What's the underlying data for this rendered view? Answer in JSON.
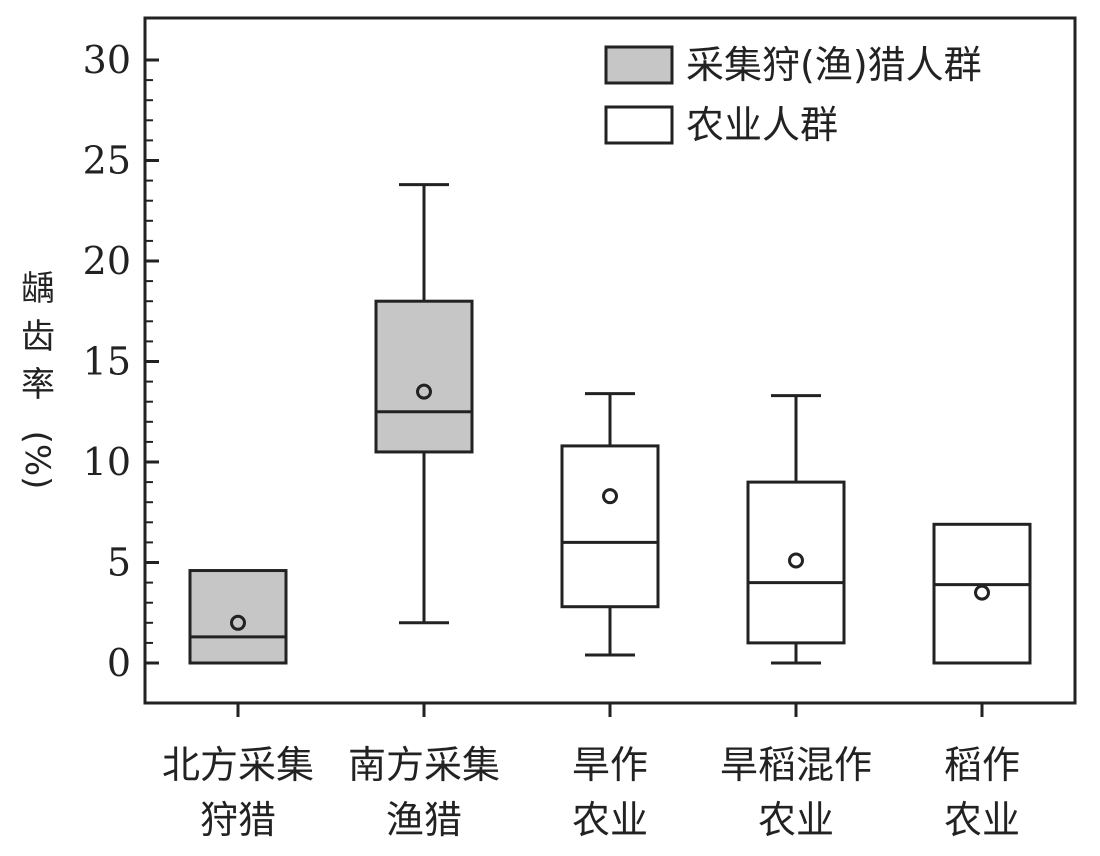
{
  "chart_data": {
    "type": "box",
    "ylabel_lines": [
      "龋",
      "齿",
      "率",
      "(%)"
    ],
    "ylim": [
      0,
      30
    ],
    "yticks": [
      "0",
      "5",
      "10",
      "15",
      "20",
      "25",
      "30"
    ],
    "grid": false,
    "legend_position": "top-right",
    "legend": [
      {
        "key": "hunter",
        "label": "采集狩(渔)猎人群",
        "color": "#c6c6c6"
      },
      {
        "key": "farmer",
        "label": "农业人群",
        "color": "#ffffff"
      }
    ],
    "categories": [
      {
        "label_lines": [
          "北方采集",
          "狩猎"
        ],
        "group": "hunter",
        "min": 0,
        "q1": 0,
        "median": 1.3,
        "q3": 4.6,
        "max": 4.6,
        "mean": 2.0
      },
      {
        "label_lines": [
          "南方采集",
          "渔猎"
        ],
        "group": "hunter",
        "min": 2.0,
        "q1": 10.5,
        "median": 12.5,
        "q3": 18.0,
        "max": 23.8,
        "mean": 13.5
      },
      {
        "label_lines": [
          "旱作",
          "农业"
        ],
        "group": "farmer",
        "min": 0.4,
        "q1": 2.8,
        "median": 6.0,
        "q3": 10.8,
        "max": 13.4,
        "mean": 8.3
      },
      {
        "label_lines": [
          "旱稻混作",
          "农业"
        ],
        "group": "farmer",
        "min": 0,
        "q1": 1.0,
        "median": 4.0,
        "q3": 9.0,
        "max": 13.3,
        "mean": 5.1
      },
      {
        "label_lines": [
          "稻作",
          "农业"
        ],
        "group": "farmer",
        "min": 0,
        "q1": 0,
        "median": 3.9,
        "q3": 6.9,
        "max": 6.9,
        "mean": 3.5
      }
    ]
  }
}
